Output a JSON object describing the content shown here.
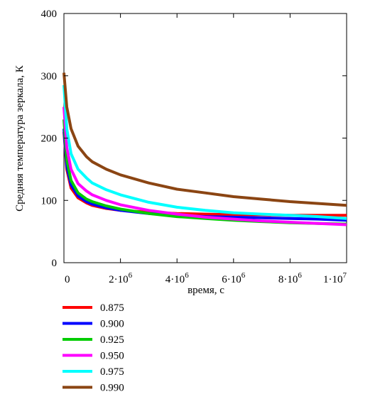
{
  "chart_data": {
    "type": "line",
    "title": "",
    "xlabel": "время, с",
    "ylabel": "Средняя температура зеркала, К",
    "xlim": [
      0,
      10000000
    ],
    "ylim": [
      0,
      400
    ],
    "grid": false,
    "legend_position": "bottom-left",
    "x_ticks": [
      {
        "value": 0,
        "base": "0",
        "exp": ""
      },
      {
        "value": 2000000,
        "base": "2·10",
        "exp": "6"
      },
      {
        "value": 4000000,
        "base": "4·10",
        "exp": "6"
      },
      {
        "value": 6000000,
        "base": "6·10",
        "exp": "6"
      },
      {
        "value": 8000000,
        "base": "8·10",
        "exp": "6"
      },
      {
        "value": 10000000,
        "base": "1·10",
        "exp": "7"
      }
    ],
    "y_ticks": [
      {
        "value": 0,
        "label": "0"
      },
      {
        "value": 100,
        "label": "100"
      },
      {
        "value": 200,
        "label": "200"
      },
      {
        "value": 300,
        "label": "300"
      },
      {
        "value": 400,
        "label": "400"
      }
    ],
    "series": [
      {
        "name": "0.875",
        "color": "#ff0000",
        "x": [
          0,
          100000,
          250000,
          500000,
          800000,
          1000000,
          1500000,
          2000000,
          3000000,
          4000000,
          5000000,
          6000000,
          7000000,
          8000000,
          9000000,
          10000000
        ],
        "y": [
          210,
          150,
          120,
          104,
          96,
          92,
          87,
          84,
          81,
          79,
          78,
          77,
          77,
          76,
          76,
          76
        ]
      },
      {
        "name": "0.900",
        "color": "#0000ff",
        "x": [
          0,
          100000,
          250000,
          500000,
          800000,
          1000000,
          1500000,
          2000000,
          3000000,
          4000000,
          5000000,
          6000000,
          7000000,
          8000000,
          9000000,
          10000000
        ],
        "y": [
          215,
          155,
          125,
          107,
          98,
          94,
          88,
          84,
          79,
          76,
          74,
          73,
          72,
          71,
          70,
          68
        ]
      },
      {
        "name": "0.925",
        "color": "#00cc00",
        "x": [
          0,
          100000,
          250000,
          500000,
          800000,
          1000000,
          1500000,
          2000000,
          3000000,
          4000000,
          5000000,
          6000000,
          7000000,
          8000000,
          9000000,
          10000000
        ],
        "y": [
          230,
          165,
          132,
          112,
          102,
          98,
          91,
          86,
          79,
          74,
          71,
          68,
          66,
          64,
          63,
          62
        ]
      },
      {
        "name": "0.950",
        "color": "#ff00ff",
        "x": [
          0,
          100000,
          250000,
          500000,
          800000,
          1000000,
          1500000,
          2000000,
          3000000,
          4000000,
          5000000,
          6000000,
          7000000,
          8000000,
          9000000,
          10000000
        ],
        "y": [
          250,
          185,
          150,
          127,
          115,
          109,
          100,
          93,
          84,
          78,
          73,
          70,
          67,
          65,
          63,
          61
        ]
      },
      {
        "name": "0.975",
        "color": "#00ffff",
        "x": [
          0,
          100000,
          250000,
          500000,
          800000,
          1000000,
          1500000,
          2000000,
          3000000,
          4000000,
          5000000,
          6000000,
          7000000,
          8000000,
          9000000,
          10000000
        ],
        "y": [
          285,
          215,
          175,
          150,
          136,
          128,
          117,
          109,
          97,
          89,
          84,
          80,
          78,
          76,
          74,
          71
        ]
      },
      {
        "name": "0.990",
        "color": "#8b4513",
        "x": [
          0,
          100000,
          250000,
          500000,
          800000,
          1000000,
          1500000,
          2000000,
          3000000,
          4000000,
          5000000,
          6000000,
          7000000,
          8000000,
          9000000,
          10000000
        ],
        "y": [
          305,
          250,
          215,
          187,
          170,
          162,
          150,
          141,
          128,
          118,
          112,
          106,
          102,
          98,
          95,
          92
        ]
      }
    ]
  }
}
